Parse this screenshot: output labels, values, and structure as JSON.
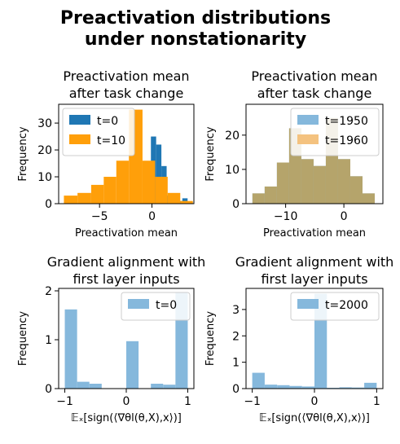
{
  "suptitle": [
    "Preactivation distributions",
    "under nonstationarity"
  ],
  "colors": {
    "blue": "#1f77b4",
    "orange": "#ff9f0a",
    "light_blue": "#85b8dc",
    "light_orange": "#f4c27f",
    "overlap": "#b5a46b"
  },
  "chart_data": [
    {
      "type": "histogram",
      "title": [
        "Preactivation mean",
        "after task change"
      ],
      "xlabel": "Preactivation mean",
      "ylabel": "Frequency",
      "xlim": [
        -8.9,
        4.0
      ],
      "ylim": [
        0,
        37
      ],
      "xticks": [
        -5,
        0
      ],
      "xtick_labels": [
        "−5",
        "0"
      ],
      "yticks": [
        0,
        10,
        20,
        30
      ],
      "yticks_labels": [
        "0",
        "10",
        "20",
        "30"
      ],
      "legend": "top-left",
      "series": [
        {
          "name": "t=0",
          "color_key": "blue",
          "alpha": 1,
          "bins": [
            [
              -0.6,
              -0.1,
              4
            ],
            [
              -0.1,
              0.4,
              25
            ],
            [
              0.4,
              0.9,
              22
            ],
            [
              0.9,
              1.4,
              14
            ],
            [
              1.4,
              1.9,
              3
            ],
            [
              1.9,
              2.4,
              2
            ],
            [
              2.4,
              2.9,
              1
            ],
            [
              2.9,
              3.4,
              2
            ],
            [
              3.4,
              3.9,
              0.5
            ]
          ]
        },
        {
          "name": "t=10",
          "color_key": "orange",
          "alpha": 1,
          "bins": [
            [
              -8.4,
              -7.1,
              3
            ],
            [
              -7.1,
              -5.8,
              4
            ],
            [
              -5.8,
              -4.6,
              7
            ],
            [
              -4.6,
              -3.4,
              10
            ],
            [
              -3.4,
              -2.2,
              16
            ],
            [
              -2.2,
              -0.9,
              35
            ],
            [
              -0.9,
              0.3,
              16
            ],
            [
              0.3,
              1.5,
              10
            ],
            [
              1.5,
              2.7,
              4
            ],
            [
              2.7,
              3.9,
              1
            ]
          ]
        }
      ]
    },
    {
      "type": "histogram",
      "title": [
        "Preactivation mean",
        "after task change"
      ],
      "xlabel": "Preactivation mean",
      "ylabel": "Frequency",
      "xlim": [
        -16.8,
        6.7
      ],
      "ylim": [
        0,
        29
      ],
      "xticks": [
        -10,
        0
      ],
      "xtick_labels": [
        "−10",
        "0"
      ],
      "yticks": [
        0,
        10,
        20
      ],
      "yticks_labels": [
        "0",
        "10",
        "20"
      ],
      "legend": "top-right",
      "series": [
        {
          "name": "t=1950",
          "color_key": "light_blue",
          "alpha": 1,
          "bins": [
            [
              -15.7,
              -13.6,
              3
            ],
            [
              -13.6,
              -11.5,
              5
            ],
            [
              -11.5,
              -9.4,
              12
            ],
            [
              -9.4,
              -7.3,
              22
            ],
            [
              -7.3,
              -5.2,
              13
            ],
            [
              -5.2,
              -3.1,
              11
            ],
            [
              -3.1,
              -1.0,
              25
            ],
            [
              -1.0,
              1.1,
              13
            ],
            [
              1.1,
              3.2,
              8
            ],
            [
              3.2,
              5.3,
              3
            ]
          ]
        },
        {
          "name": "t=1960",
          "color_key": "light_orange",
          "alpha": 1,
          "bins": [
            [
              -15.7,
              -13.6,
              3
            ],
            [
              -13.6,
              -11.5,
              5
            ],
            [
              -11.5,
              -9.4,
              12
            ],
            [
              -9.4,
              -7.3,
              22
            ],
            [
              -7.3,
              -5.2,
              13
            ],
            [
              -5.2,
              -3.1,
              11
            ],
            [
              -3.1,
              -1.0,
              25
            ],
            [
              -1.0,
              1.1,
              13
            ],
            [
              1.1,
              3.2,
              8
            ],
            [
              3.2,
              5.3,
              3
            ]
          ]
        }
      ]
    },
    {
      "type": "histogram",
      "title": [
        "Gradient alignment with",
        "first layer inputs"
      ],
      "xlabel": "𝔼ₓ[sign(⟨∇θl(θ,X),x⟩)]",
      "ylabel": "Frequency",
      "xlim": [
        -1.1,
        1.1
      ],
      "ylim": [
        0,
        2.05
      ],
      "xticks": [
        -1,
        0,
        1
      ],
      "xtick_labels": [
        "−1",
        "0",
        "1"
      ],
      "yticks": [
        0,
        1,
        2
      ],
      "yticks_labels": [
        "0",
        "1",
        "2"
      ],
      "legend": "top-right",
      "series": [
        {
          "name": "t=0",
          "color_key": "light_blue",
          "alpha": 1,
          "bins": [
            [
              -1.0,
              -0.8,
              1.62
            ],
            [
              -0.8,
              -0.6,
              0.14
            ],
            [
              -0.6,
              -0.4,
              0.1
            ],
            [
              -0.4,
              -0.2,
              0
            ],
            [
              -0.2,
              0.0,
              0
            ],
            [
              0.0,
              0.2,
              0.97
            ],
            [
              0.2,
              0.4,
              0
            ],
            [
              0.4,
              0.6,
              0.1
            ],
            [
              0.6,
              0.8,
              0.08
            ],
            [
              0.8,
              1.0,
              1.96
            ]
          ]
        }
      ]
    },
    {
      "type": "histogram",
      "title": [
        "Gradient alignment with",
        "first layer inputs"
      ],
      "xlabel": "𝔼ₓ[sign(⟨∇θl(θ,X),x⟩)]",
      "ylabel": "Frequency",
      "xlim": [
        -1.1,
        1.1
      ],
      "ylim": [
        0,
        3.8
      ],
      "xticks": [
        -1,
        0,
        1
      ],
      "xtick_labels": [
        "−1",
        "0",
        "1"
      ],
      "yticks": [
        0,
        1,
        2,
        3
      ],
      "yticks_labels": [
        "0",
        "1",
        "2",
        "3"
      ],
      "legend": "top-right",
      "series": [
        {
          "name": "t=2000",
          "color_key": "light_blue",
          "alpha": 1,
          "bins": [
            [
              -1.0,
              -0.8,
              0.6
            ],
            [
              -0.8,
              -0.6,
              0.15
            ],
            [
              -0.6,
              -0.4,
              0.13
            ],
            [
              -0.4,
              -0.2,
              0.1
            ],
            [
              -0.2,
              0.0,
              0.08
            ],
            [
              0.0,
              0.2,
              3.6
            ],
            [
              0.2,
              0.4,
              0.03
            ],
            [
              0.4,
              0.6,
              0.05
            ],
            [
              0.6,
              0.8,
              0.04
            ],
            [
              0.8,
              1.0,
              0.22
            ]
          ]
        }
      ]
    }
  ]
}
